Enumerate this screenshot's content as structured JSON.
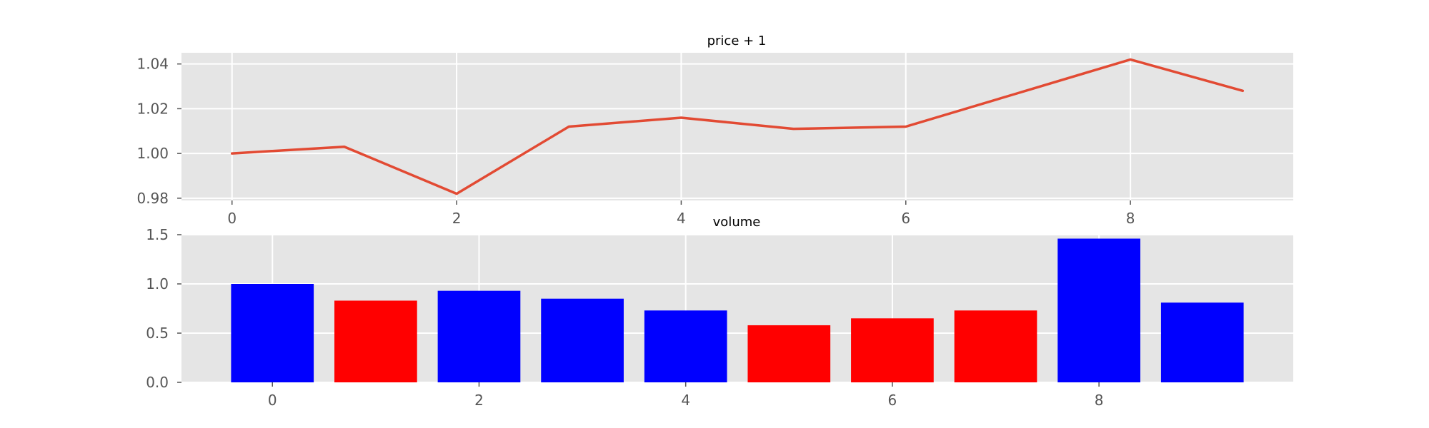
{
  "chart_data": [
    {
      "type": "line",
      "title": "price + 1",
      "xlabel": "",
      "ylabel": "",
      "x": [
        0,
        1,
        2,
        3,
        4,
        5,
        6,
        7,
        8,
        9
      ],
      "series": [
        {
          "values": [
            1.0,
            1.003,
            0.982,
            1.012,
            1.016,
            1.011,
            1.012,
            1.027,
            1.042,
            1.028
          ],
          "color": "#e24a33"
        }
      ],
      "xlim": [
        -0.45,
        9.45
      ],
      "ylim": [
        0.979,
        1.045
      ],
      "xticks": [
        0,
        2,
        4,
        6,
        8
      ],
      "xtick_labels": [
        "0",
        "2",
        "4",
        "6",
        "8"
      ],
      "yticks": [
        0.98,
        1.0,
        1.02,
        1.04
      ],
      "ytick_labels": [
        "0.98",
        "1.00",
        "1.02",
        "1.04"
      ],
      "grid": true
    },
    {
      "type": "bar",
      "title": "volume",
      "xlabel": "",
      "ylabel": "",
      "x": [
        0,
        1,
        2,
        3,
        4,
        5,
        6,
        7,
        8,
        9
      ],
      "values": [
        1.0,
        0.83,
        0.93,
        0.85,
        0.73,
        0.58,
        0.65,
        0.73,
        1.46,
        0.81
      ],
      "bar_colors": [
        "#0000ff",
        "#ff0000",
        "#0000ff",
        "#0000ff",
        "#0000ff",
        "#ff0000",
        "#ff0000",
        "#ff0000",
        "#0000ff",
        "#0000ff"
      ],
      "xlim": [
        -0.88,
        9.88
      ],
      "ylim": [
        0,
        1.5
      ],
      "xticks": [
        0,
        2,
        4,
        6,
        8
      ],
      "xtick_labels": [
        "0",
        "2",
        "4",
        "6",
        "8"
      ],
      "yticks": [
        0.0,
        0.5,
        1.0,
        1.5
      ],
      "ytick_labels": [
        "0.0",
        "0.5",
        "1.0",
        "1.5"
      ],
      "grid": true
    }
  ]
}
